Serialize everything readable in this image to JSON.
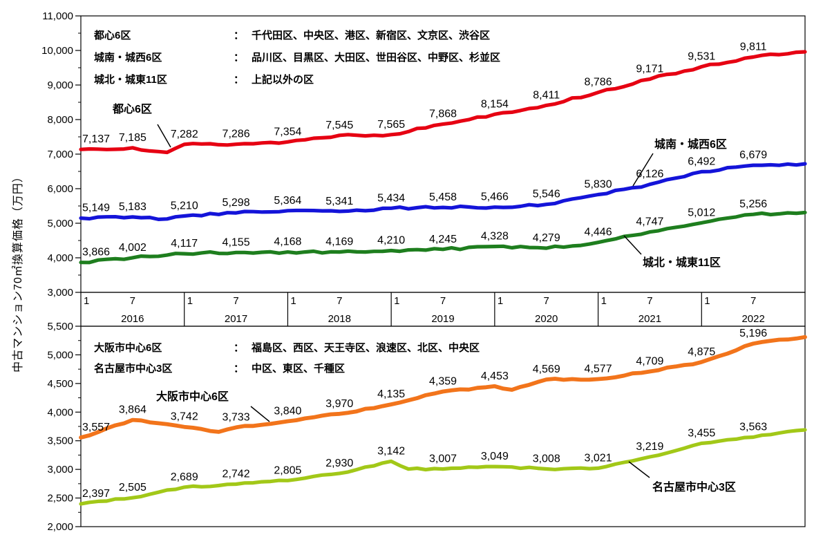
{
  "axis_title": "中古マンション70㎡換算価格（万円）",
  "legend_top": [
    {
      "name": "都心6区",
      "colon": "：",
      "desc": "千代田区、中央区、港区、新宿区、文京区、渋谷区"
    },
    {
      "name": "城南・城西6区",
      "colon": "：",
      "desc": "品川区、目黒区、大田区、世田谷区、中野区、杉並区"
    },
    {
      "name": "城北・城東11区",
      "colon": "：",
      "desc": "上記以外の区"
    }
  ],
  "legend_bottom": [
    {
      "name": "大阪市中心6区",
      "colon": "：",
      "desc": "福島区、西区、天王寺区、浪速区、北区、中央区"
    },
    {
      "name": "名古屋市中心3区",
      "colon": "：",
      "desc": "中区、東区、千種区"
    }
  ],
  "annotations": [
    {
      "text": "都心6区"
    },
    {
      "text": "城南・城西6区"
    },
    {
      "text": "城北・城東11区"
    },
    {
      "text": "大阪市中心6区"
    },
    {
      "text": "名古屋市中心3区"
    }
  ],
  "chart_data": [
    {
      "type": "line",
      "position": "top",
      "ylim": [
        3000,
        11000
      ],
      "ytick_step": 1000,
      "grid": false,
      "x_years": [
        2016,
        2017,
        2018,
        2019,
        2020,
        2021,
        2022
      ],
      "x_month_ticks": [
        "1",
        "7"
      ],
      "x_unit": "month",
      "label_months": [
        0,
        6,
        12,
        18,
        24,
        30,
        36,
        42,
        48,
        54,
        60,
        66,
        72,
        78
      ],
      "series": [
        {
          "name": "都心6区",
          "color": "#e60012",
          "stroke_width": 5.2,
          "values": [
            7137,
            7185,
            7282,
            7286,
            7354,
            7545,
            7565,
            7868,
            8154,
            8411,
            8786,
            9171,
            9531,
            9811
          ],
          "end_value": 9960,
          "extra_points": [
            [
              10,
              7050
            ]
          ]
        },
        {
          "name": "城南・城西6区",
          "color": "#1414d9",
          "stroke_width": 5.2,
          "values": [
            5149,
            5183,
            5210,
            5298,
            5364,
            5341,
            5434,
            5458,
            5466,
            5546,
            5830,
            6126,
            6492,
            6679
          ],
          "end_value": 6720,
          "extra_points": [
            [
              10,
              5125
            ]
          ]
        },
        {
          "name": "城北・城東11区",
          "color": "#1e7e1e",
          "stroke_width": 5.2,
          "values": [
            3866,
            4002,
            4117,
            4155,
            4168,
            4169,
            4210,
            4245,
            4328,
            4279,
            4446,
            4747,
            5012,
            5256
          ],
          "end_value": 5310,
          "extra_points": []
        }
      ]
    },
    {
      "type": "line",
      "position": "bottom",
      "x_axis_shared": true,
      "ylim": [
        2000,
        5500
      ],
      "ytick_step": 500,
      "grid": false,
      "x_unit": "month",
      "label_months": [
        0,
        6,
        12,
        18,
        24,
        30,
        36,
        42,
        48,
        54,
        60,
        66,
        72,
        78
      ],
      "series": [
        {
          "name": "大阪市中心6区",
          "color": "#f2741b",
          "stroke_width": 5.8,
          "values": [
            3557,
            3864,
            3742,
            3733,
            3840,
            3970,
            4135,
            4359,
            4453,
            4569,
            4577,
            4709,
            4875,
            5196
          ],
          "end_value": 5310,
          "extra_points": [
            [
              16,
              3655
            ],
            [
              50,
              4390
            ]
          ]
        },
        {
          "name": "名古屋市中心3区",
          "color": "#a2c818",
          "stroke_width": 5.2,
          "values": [
            2397,
            2505,
            2689,
            2742,
            2805,
            2930,
            3142,
            3007,
            3049,
            3008,
            3021,
            3219,
            3455,
            3563
          ],
          "end_value": 3690,
          "extra_points": [
            [
              38,
              3005
            ]
          ]
        }
      ]
    }
  ]
}
